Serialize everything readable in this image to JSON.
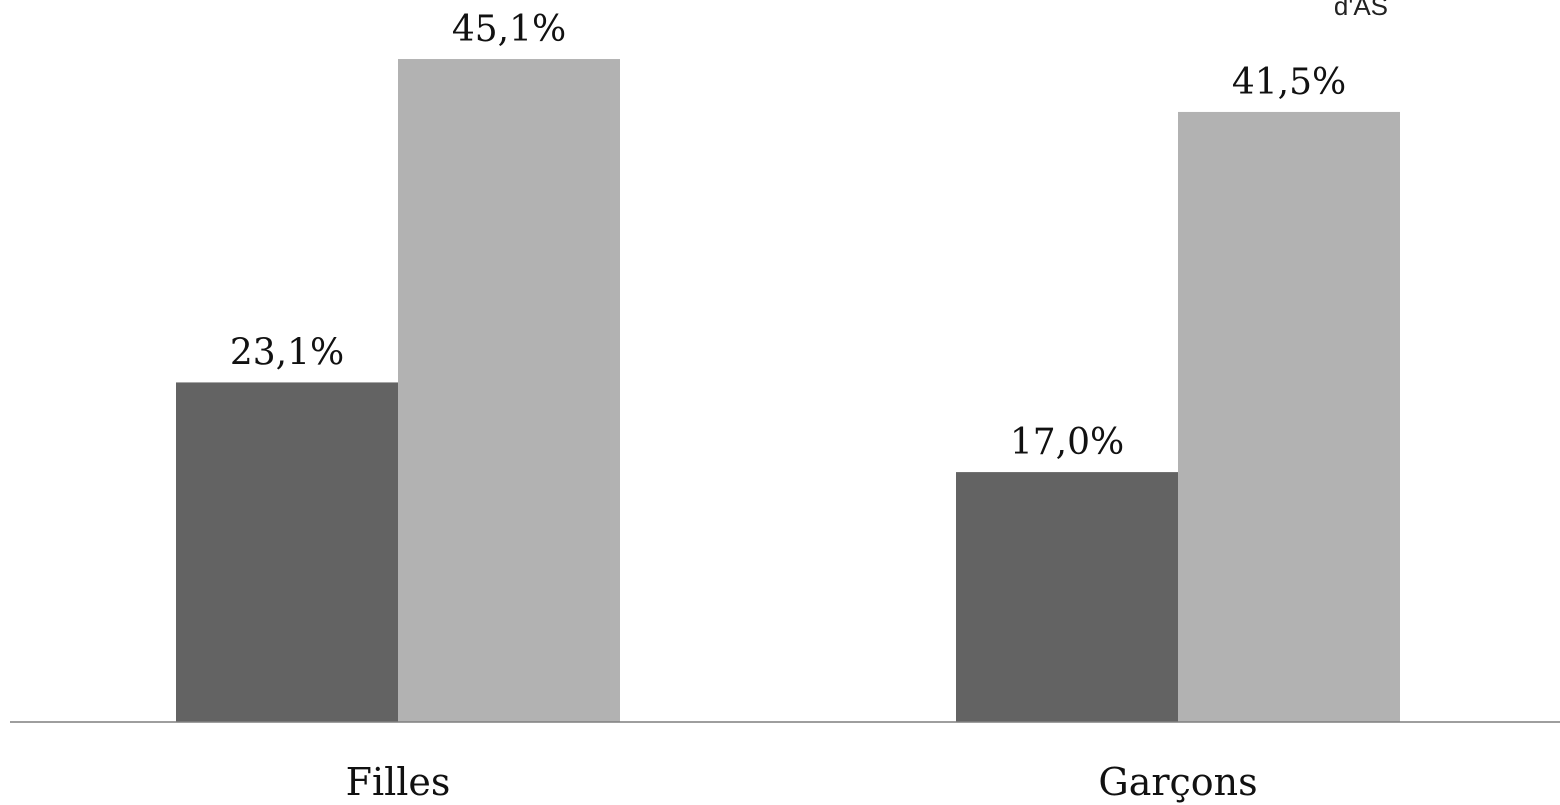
{
  "chart_data": {
    "type": "bar",
    "categories": [
      "Filles",
      "Garçons"
    ],
    "series": [
      {
        "values": [
          23.1,
          17.0
        ],
        "value_labels": [
          "23,1%",
          "17,0%"
        ],
        "color": "#636363"
      },
      {
        "values": [
          45.1,
          41.5
        ],
        "value_labels": [
          "45,1%",
          "41,5%"
        ],
        "color": "#b2b2b2"
      }
    ],
    "legend_fragment": "d'AS",
    "ylim": [
      0,
      50
    ],
    "grid": false,
    "axis_color": "#7f7f7f"
  }
}
